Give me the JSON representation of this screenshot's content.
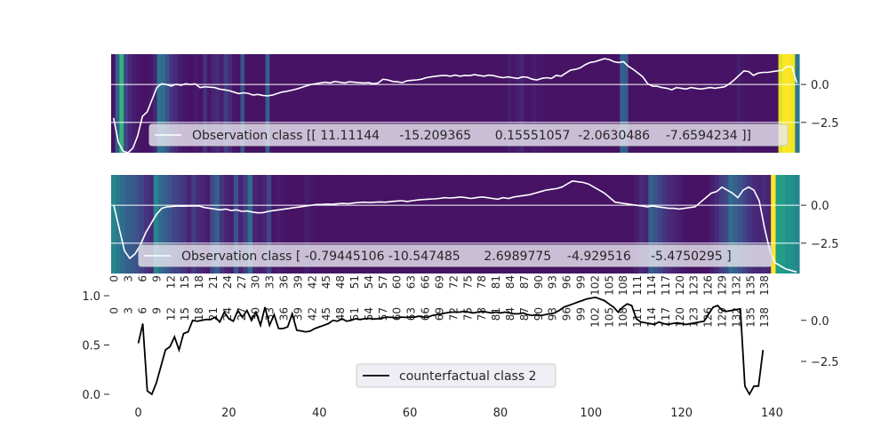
{
  "chart_data": [
    {
      "type": "heatmap",
      "panel": "top",
      "legend": "Observation class [[ 11.11144     -15.209365      0.15551057  -2.0630486    -7.6594234 ]]",
      "right_ticks": [
        "0.0",
        "−2.5"
      ],
      "right_tick_values": [
        0.0,
        -2.5
      ],
      "ylim": [
        -4.5,
        2.0
      ],
      "heat": [
        0.05,
        0.3,
        0.65,
        0.2,
        0.12,
        0.08,
        0.06,
        0.05,
        0.05,
        0.06,
        0.1,
        0.38,
        0.35,
        0.25,
        0.15,
        0.12,
        0.08,
        0.06,
        0.05,
        0.05,
        0.07,
        0.05,
        0.14,
        0.06,
        0.1,
        0.12,
        0.08,
        0.18,
        0.12,
        0.06,
        0.05,
        0.25,
        0.05,
        0.05,
        0.05,
        0.05,
        0.05,
        0.3,
        0.05,
        0.05,
        0.05,
        0.05,
        0.05,
        0.05,
        0.05,
        0.05,
        0.05,
        0.05,
        0.05,
        0.05,
        0.05,
        0.05,
        0.05,
        0.05,
        0.05,
        0.05,
        0.05,
        0.05,
        0.05,
        0.05,
        0.05,
        0.05,
        0.05,
        0.05,
        0.05,
        0.05,
        0.05,
        0.05,
        0.05,
        0.05,
        0.05,
        0.05,
        0.05,
        0.05,
        0.05,
        0.05,
        0.05,
        0.05,
        0.05,
        0.05,
        0.05,
        0.05,
        0.05,
        0.05,
        0.05,
        0.05,
        0.05,
        0.05,
        0.05,
        0.05,
        0.05,
        0.05,
        0.05,
        0.05,
        0.05,
        0.08,
        0.06,
        0.08,
        0.1,
        0.06,
        0.06,
        0.08,
        0.06,
        0.06,
        0.05,
        0.05,
        0.05,
        0.05,
        0.05,
        0.05,
        0.05,
        0.05,
        0.05,
        0.05,
        0.05,
        0.05,
        0.05,
        0.05,
        0.05,
        0.05,
        0.05,
        0.05,
        0.3,
        0.28,
        0.05,
        0.05,
        0.05,
        0.05,
        0.05,
        0.05,
        0.05,
        0.05,
        0.05,
        0.05,
        0.05,
        0.05,
        0.05,
        0.05,
        0.05,
        0.05,
        0.05,
        0.05,
        0.05,
        0.05,
        0.05,
        0.05,
        0.05,
        0.05,
        0.05,
        0.05,
        0.08,
        0.06,
        0.05,
        0.05,
        0.05,
        0.05,
        0.05,
        0.05,
        0.05,
        0.05,
        0.95,
        1.0,
        1.0,
        0.98,
        0.4
      ],
      "line": [
        -2.2,
        -3.8,
        -4.4,
        -4.5,
        -4.2,
        -3.4,
        -2.1,
        -1.8,
        -1.0,
        -0.2,
        0.05,
        0.0,
        -0.1,
        0.02,
        -0.05,
        0.05,
        0.0,
        0.04,
        -0.2,
        -0.15,
        -0.18,
        -0.2,
        -0.3,
        -0.35,
        -0.4,
        -0.5,
        -0.6,
        -0.55,
        -0.58,
        -0.7,
        -0.65,
        -0.72,
        -0.75,
        -0.7,
        -0.6,
        -0.5,
        -0.45,
        -0.38,
        -0.3,
        -0.2,
        -0.1,
        0.0,
        0.05,
        0.1,
        0.15,
        0.1,
        0.2,
        0.15,
        0.1,
        0.18,
        0.15,
        0.12,
        0.1,
        0.12,
        0.05,
        0.1,
        0.35,
        0.3,
        0.2,
        0.18,
        0.12,
        0.25,
        0.28,
        0.3,
        0.35,
        0.45,
        0.5,
        0.55,
        0.58,
        0.6,
        0.55,
        0.62,
        0.55,
        0.6,
        0.58,
        0.65,
        0.6,
        0.55,
        0.62,
        0.58,
        0.5,
        0.45,
        0.5,
        0.45,
        0.4,
        0.5,
        0.48,
        0.35,
        0.3,
        0.4,
        0.45,
        0.4,
        0.6,
        0.55,
        0.75,
        0.95,
        1.0,
        1.1,
        1.3,
        1.45,
        1.5,
        1.6,
        1.7,
        1.65,
        1.5,
        1.45,
        1.5,
        1.2,
        1.0,
        0.75,
        0.5,
        0.05,
        -0.1,
        -0.12,
        -0.2,
        -0.25,
        -0.35,
        -0.2,
        -0.25,
        -0.3,
        -0.2,
        -0.25,
        -0.3,
        -0.25,
        -0.2,
        -0.25,
        -0.2,
        -0.15,
        0.05,
        0.3,
        0.6,
        0.9,
        0.85,
        0.6,
        0.75,
        0.8,
        0.8,
        0.85,
        0.9,
        0.95,
        1.2,
        1.15,
        0.1
      ]
    },
    {
      "type": "heatmap",
      "panel": "middle",
      "legend": "Observation class [ -0.79445106 -10.547485      2.6989775    -4.929516     -5.4750295 ]",
      "right_ticks": [
        "0.0",
        "−2.5"
      ],
      "right_tick_values": [
        0.0,
        -2.5
      ],
      "ylim": [
        -4.5,
        2.0
      ],
      "x_ticks": [
        "0",
        "3",
        "6",
        "9",
        "12",
        "15",
        "18",
        "21",
        "24",
        "27",
        "30",
        "33",
        "36",
        "39",
        "42",
        "45",
        "48",
        "51",
        "54",
        "57",
        "60",
        "63",
        "66",
        "69",
        "72",
        "75",
        "78",
        "81",
        "84",
        "87",
        "90",
        "93",
        "96",
        "99",
        "102",
        "105",
        "108",
        "111",
        "114",
        "117",
        "120",
        "123",
        "126",
        "129",
        "132",
        "135",
        "138"
      ],
      "heat": [
        0.45,
        0.4,
        0.35,
        0.3,
        0.28,
        0.25,
        0.2,
        0.15,
        0.12,
        0.45,
        0.35,
        0.3,
        0.25,
        0.2,
        0.18,
        0.15,
        0.1,
        0.18,
        0.12,
        0.1,
        0.08,
        0.22,
        0.3,
        0.15,
        0.1,
        0.08,
        0.25,
        0.1,
        0.18,
        0.35,
        0.1,
        0.08,
        0.1,
        0.2,
        0.06,
        0.08,
        0.06,
        0.05,
        0.05,
        0.05,
        0.05,
        0.08,
        0.06,
        0.05,
        0.05,
        0.05,
        0.05,
        0.05,
        0.05,
        0.05,
        0.05,
        0.05,
        0.05,
        0.05,
        0.05,
        0.05,
        0.05,
        0.05,
        0.05,
        0.05,
        0.05,
        0.05,
        0.05,
        0.05,
        0.05,
        0.05,
        0.05,
        0.05,
        0.05,
        0.05,
        0.05,
        0.05,
        0.05,
        0.05,
        0.05,
        0.05,
        0.05,
        0.05,
        0.05,
        0.05,
        0.05,
        0.05,
        0.05,
        0.05,
        0.05,
        0.05,
        0.05,
        0.05,
        0.05,
        0.05,
        0.05,
        0.05,
        0.05,
        0.05,
        0.05,
        0.05,
        0.05,
        0.05,
        0.05,
        0.05,
        0.05,
        0.05,
        0.05,
        0.05,
        0.05,
        0.05,
        0.05,
        0.05,
        0.05,
        0.05,
        0.05,
        0.08,
        0.12,
        0.1,
        0.3,
        0.25,
        0.2,
        0.15,
        0.12,
        0.1,
        0.08,
        0.06,
        0.05,
        0.05,
        0.05,
        0.05,
        0.05,
        0.08,
        0.12,
        0.18,
        0.22,
        0.35,
        0.3,
        0.25,
        0.2,
        0.15,
        0.12,
        0.1,
        0.12,
        0.1,
        1.0,
        0.55,
        0.55,
        0.5,
        0.5,
        0.45
      ],
      "line": [
        0.0,
        -1.5,
        -3.0,
        -3.5,
        -3.2,
        -2.6,
        -1.8,
        -1.2,
        -0.6,
        -0.2,
        -0.1,
        -0.08,
        -0.05,
        -0.06,
        -0.05,
        -0.04,
        -0.05,
        -0.15,
        -0.2,
        -0.25,
        -0.3,
        -0.25,
        -0.35,
        -0.3,
        -0.4,
        -0.38,
        -0.45,
        -0.5,
        -0.48,
        -0.4,
        -0.35,
        -0.3,
        -0.25,
        -0.2,
        -0.15,
        -0.1,
        -0.05,
        0.0,
        0.05,
        0.05,
        0.08,
        0.06,
        0.1,
        0.12,
        0.1,
        0.15,
        0.18,
        0.2,
        0.18,
        0.2,
        0.22,
        0.2,
        0.25,
        0.28,
        0.3,
        0.25,
        0.3,
        0.35,
        0.38,
        0.4,
        0.42,
        0.45,
        0.5,
        0.48,
        0.5,
        0.55,
        0.5,
        0.45,
        0.5,
        0.55,
        0.5,
        0.45,
        0.4,
        0.5,
        0.45,
        0.55,
        0.6,
        0.65,
        0.7,
        0.8,
        0.9,
        1.0,
        1.05,
        1.1,
        1.2,
        1.4,
        1.6,
        1.55,
        1.5,
        1.4,
        1.2,
        1.0,
        0.8,
        0.5,
        0.2,
        0.15,
        0.1,
        0.05,
        0.0,
        -0.05,
        -0.1,
        -0.05,
        -0.1,
        -0.15,
        -0.2,
        -0.2,
        -0.25,
        -0.2,
        -0.15,
        -0.1,
        0.2,
        0.5,
        0.8,
        0.9,
        1.2,
        1.0,
        0.8,
        0.5,
        1.0,
        1.2,
        1.0,
        0.3,
        -1.5,
        -3.0,
        -3.8,
        -4.0,
        -4.2,
        -4.3,
        -4.4
      ]
    },
    {
      "type": "line",
      "panel": "bottom",
      "legend": "counterfactual class 2",
      "x_ticks": [
        "0",
        "20",
        "40",
        "60",
        "80",
        "100",
        "120",
        "140"
      ],
      "y_ticks_left": [
        "0.0",
        "0.5",
        "1.0"
      ],
      "y_ticks_right": [
        "0.0",
        "−2.5"
      ],
      "y_tick_values_right": [
        0.0,
        -2.5
      ],
      "xlim": [
        -6,
        146
      ],
      "ylim_left": [
        0.0,
        1.0
      ],
      "ylim_right": [
        -4.5,
        1.5
      ],
      "series": [
        {
          "values": [
            -1.4,
            -0.2,
            -4.3,
            -4.5,
            -3.8,
            -2.8,
            -1.8,
            -1.6,
            -1.0,
            -1.8,
            -0.8,
            -0.7,
            0.0,
            -0.05,
            0.0,
            0.05,
            0.05,
            0.2,
            -0.1,
            0.5,
            0.1,
            -0.05,
            0.6,
            0.2,
            0.6,
            0.0,
            0.5,
            -0.3,
            0.8,
            -0.3,
            0.35,
            -0.5,
            -0.5,
            -0.4,
            0.4,
            -0.6,
            -0.65,
            -0.7,
            -0.65,
            -0.5,
            -0.4,
            -0.3,
            -0.2,
            0.0,
            -0.05,
            0.1,
            -0.05,
            0.0,
            0.1,
            0.05,
            0.1,
            0.12,
            0.08,
            0.1,
            0.15,
            0.2,
            0.18,
            0.15,
            0.2,
            0.18,
            0.2,
            0.2,
            0.25,
            0.2,
            0.2,
            0.3,
            0.35,
            0.4,
            0.45,
            0.5,
            0.5,
            0.5,
            0.55,
            0.5,
            0.45,
            0.5,
            0.55,
            0.5,
            0.45,
            0.5,
            0.45,
            0.5,
            0.45,
            0.4,
            0.4,
            0.45,
            0.35,
            0.3,
            0.35,
            0.3,
            0.35,
            0.4,
            0.45,
            0.6,
            0.8,
            0.9,
            1.0,
            1.1,
            1.2,
            1.3,
            1.35,
            1.4,
            1.3,
            1.2,
            1.0,
            0.8,
            0.5,
            0.8,
            1.0,
            0.9,
            0.1,
            -0.1,
            -0.15,
            -0.2,
            -0.25,
            -0.1,
            -0.2,
            -0.25,
            -0.2,
            -0.15,
            -0.2,
            -0.25,
            -0.2,
            -0.15,
            -0.1,
            -0.05,
            0.4,
            0.8,
            0.9,
            0.6,
            0.55,
            0.6,
            0.65,
            0.7,
            -4.0,
            -4.5,
            -4.0,
            -4.0,
            -1.8
          ]
        }
      ]
    }
  ]
}
